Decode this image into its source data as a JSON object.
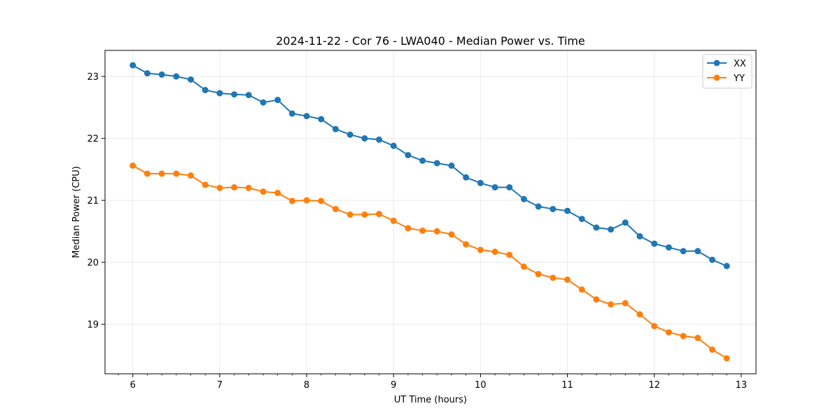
{
  "chart_data": {
    "type": "line",
    "title": "2024-11-22 - Cor 76 - LWA040 - Median Power vs. Time",
    "xlabel": "UT Time (hours)",
    "ylabel": "Median Power (CPU)",
    "xlim": [
      5.68,
      13.17
    ],
    "ylim": [
      18.2,
      23.42
    ],
    "xticks": [
      6,
      7,
      8,
      9,
      10,
      11,
      12,
      13
    ],
    "yticks": [
      19,
      20,
      21,
      22,
      23
    ],
    "grid": true,
    "legend_position": "top-right",
    "x": [
      6.0,
      6.1667,
      6.3333,
      6.5,
      6.6667,
      6.8333,
      7.0,
      7.1667,
      7.3333,
      7.5,
      7.6667,
      7.8333,
      8.0,
      8.1667,
      8.3333,
      8.5,
      8.6667,
      8.8333,
      9.0,
      9.1667,
      9.3333,
      9.5,
      9.6667,
      9.8333,
      10.0,
      10.1667,
      10.3333,
      10.5,
      10.6667,
      10.8333,
      11.0,
      11.1667,
      11.3333,
      11.5,
      11.6667,
      11.8333,
      12.0,
      12.1667,
      12.3333,
      12.5,
      12.6667,
      12.8333
    ],
    "series": [
      {
        "name": "XX",
        "color": "#1f77b4",
        "values": [
          23.18,
          23.05,
          23.03,
          23.0,
          22.95,
          22.78,
          22.73,
          22.71,
          22.7,
          22.58,
          22.62,
          22.4,
          22.36,
          22.31,
          22.15,
          22.06,
          22.0,
          21.98,
          21.88,
          21.73,
          21.64,
          21.6,
          21.56,
          21.37,
          21.28,
          21.21,
          21.21,
          21.02,
          20.9,
          20.86,
          20.83,
          20.7,
          20.56,
          20.53,
          20.64,
          20.42,
          20.3,
          20.24,
          20.18,
          20.18,
          20.04,
          19.94
        ]
      },
      {
        "name": "YY",
        "color": "#ff7f0e",
        "values": [
          21.56,
          21.43,
          21.43,
          21.43,
          21.4,
          21.25,
          21.2,
          21.21,
          21.2,
          21.14,
          21.12,
          20.99,
          21.0,
          20.99,
          20.86,
          20.77,
          20.77,
          20.78,
          20.67,
          20.55,
          20.51,
          20.5,
          20.45,
          20.29,
          20.2,
          20.17,
          20.12,
          19.93,
          19.81,
          19.75,
          19.72,
          19.56,
          19.4,
          19.32,
          19.34,
          19.16,
          18.97,
          18.87,
          18.81,
          18.78,
          18.59,
          18.45
        ]
      }
    ]
  }
}
